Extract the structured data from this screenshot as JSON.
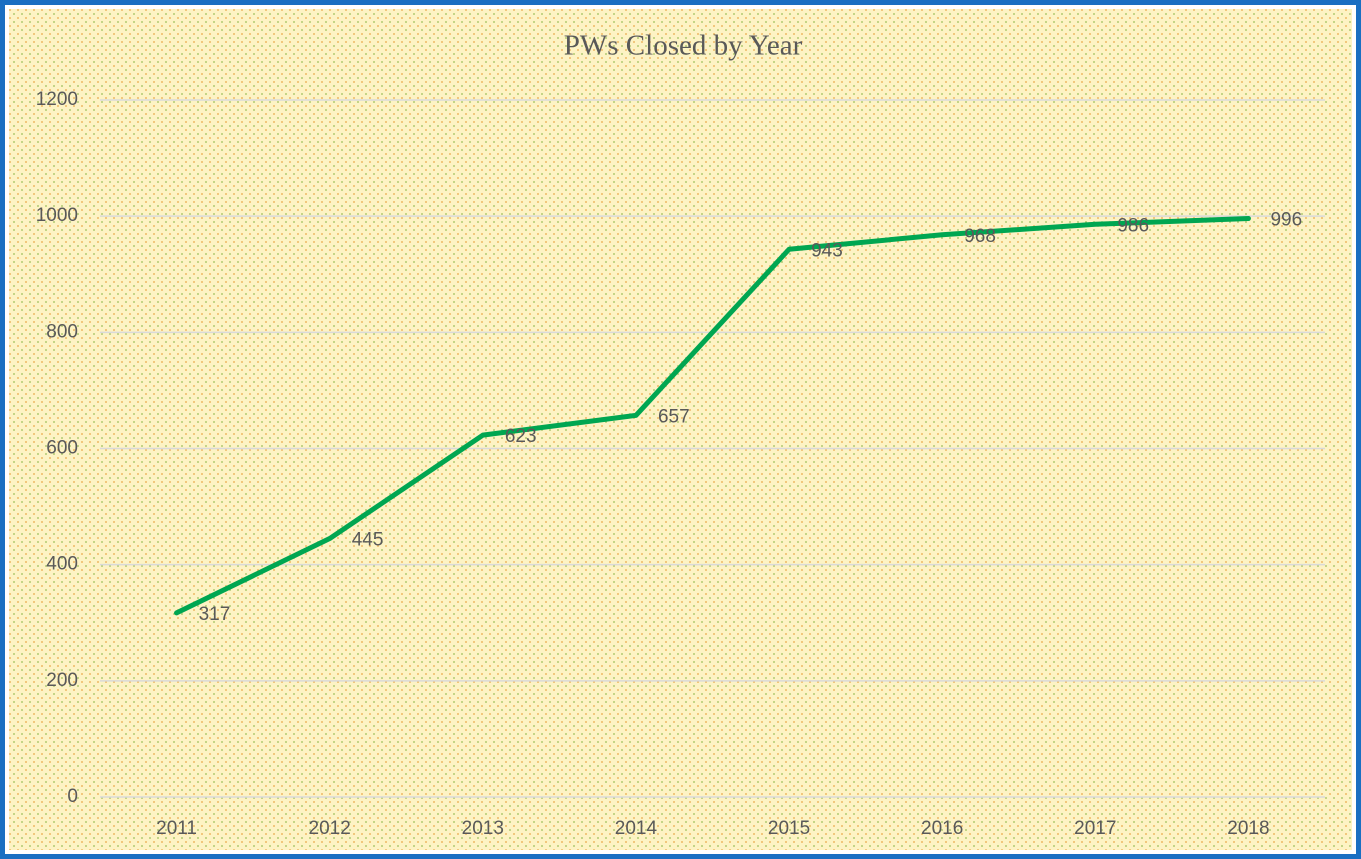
{
  "chart_data": {
    "type": "line",
    "title": "PWs Closed by Year",
    "categories": [
      "2011",
      "2012",
      "2013",
      "2014",
      "2015",
      "2016",
      "2017",
      "2018"
    ],
    "series": [
      {
        "name": "PWs Closed",
        "color": "#00a651",
        "values": [
          317,
          445,
          623,
          657,
          943,
          968,
          986,
          996
        ]
      }
    ],
    "ylim": [
      0,
      1200
    ],
    "yticks": [
      0,
      200,
      400,
      600,
      800,
      1000,
      1200
    ],
    "grid": true,
    "data_labels": true
  }
}
